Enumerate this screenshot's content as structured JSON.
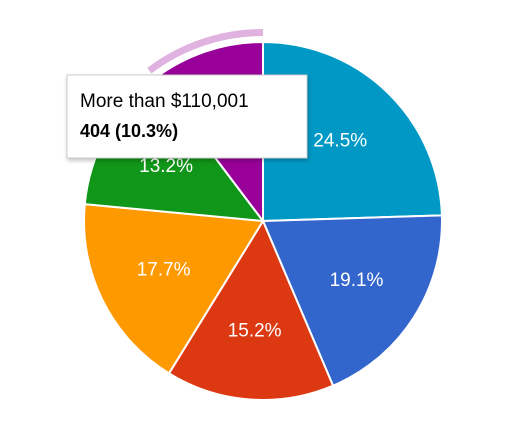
{
  "chart_data": {
    "type": "pie",
    "categories": [
      null,
      null,
      null,
      null,
      null,
      "More than $110,001"
    ],
    "values": [
      24.5,
      19.1,
      15.2,
      17.7,
      13.2,
      10.3
    ],
    "value_labels": [
      "24.5%",
      "19.1%",
      "15.2%",
      "17.7%",
      "13.2%",
      "10.3%"
    ],
    "colors": [
      "#0099c6",
      "#3366cc",
      "#dc3912",
      "#ff9900",
      "#109618",
      "#990099"
    ],
    "tooltip": "404 (10.3%)"
  }
}
